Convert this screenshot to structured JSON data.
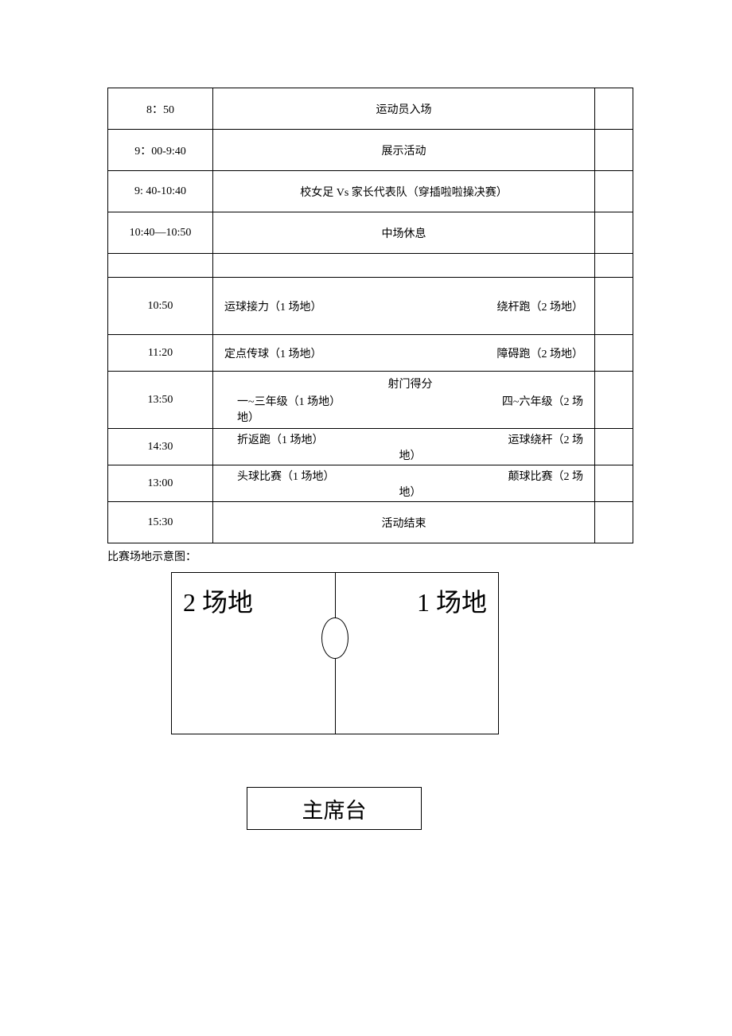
{
  "schedule": {
    "rows": [
      {
        "time": "8：50",
        "content": "运动员入场",
        "layout": "center",
        "h": "h-normal"
      },
      {
        "time": "9：00-9:40",
        "content": "展示活动",
        "layout": "center",
        "h": "h-normal"
      },
      {
        "time": "9: 40-10:40",
        "content": "校女足 Vs 家长代表队（穿插啦啦操决赛）",
        "layout": "center",
        "h": "h-normal"
      },
      {
        "time": "10:40—10:50",
        "content": "中场休息",
        "layout": "center",
        "h": "h-normal"
      },
      {
        "time": "",
        "content": "",
        "layout": "center",
        "h": "h-tiny"
      },
      {
        "time": "10:50",
        "left": "运球接力（1 场地）",
        "right": "绕杆跑（2 场地）",
        "layout": "twocol",
        "h": "h-large"
      },
      {
        "time": "11:20",
        "left": "定点传球（1 场地）",
        "right": "障碍跑（2 场地）",
        "layout": "twocol",
        "h": "h-med"
      },
      {
        "time": "13:50",
        "title": "射门得分",
        "left": "一~三年级（1 场地）",
        "right": "四~六年级（2 场",
        "line2": "地）",
        "layout": "stacked",
        "h": "h-large"
      },
      {
        "time": "14:30",
        "left": "折返跑（1 场地）",
        "right": "运球绕杆（2 场",
        "center2": "地）",
        "layout": "wrap",
        "h": "h-med"
      },
      {
        "time": "13:00",
        "left": "头球比赛（1 场地）",
        "right": "颠球比赛（2 场",
        "center2": "地）",
        "layout": "wrap",
        "h": "h-med"
      },
      {
        "time": "15:30",
        "content": "活动结束",
        "layout": "center",
        "h": "h-normal"
      }
    ]
  },
  "diagram": {
    "label": "比赛场地示意图：",
    "field2": "2 场地",
    "field1": "1 场地",
    "podium": "主席台"
  },
  "styles": {
    "border_color": "#000000",
    "background": "#ffffff",
    "text_color": "#000000",
    "table_fontsize": 14,
    "field_label_fontsize": 32,
    "podium_fontsize": 27
  }
}
